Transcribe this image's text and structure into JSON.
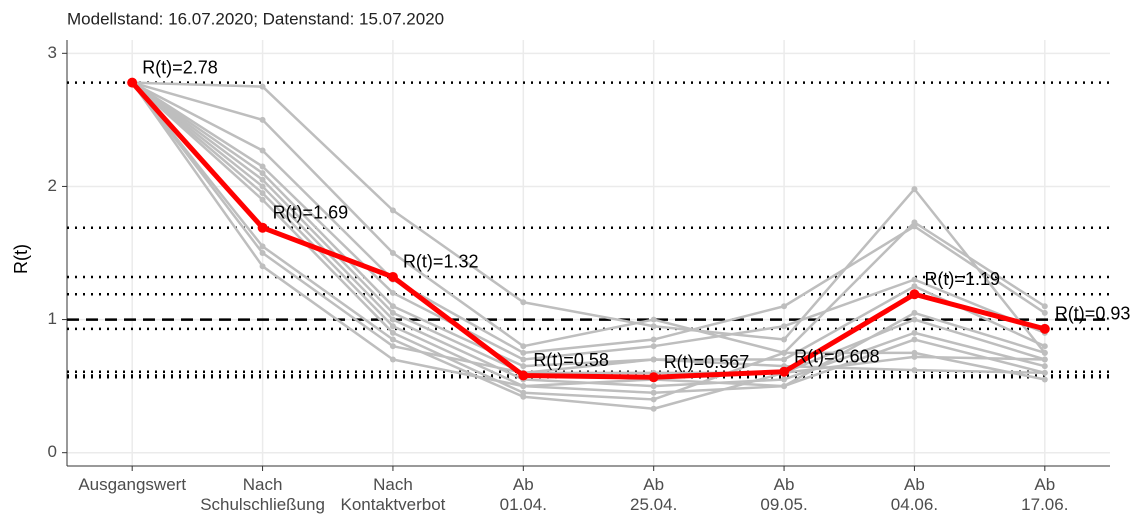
{
  "chart_data": {
    "type": "line",
    "title": "Modellstand: 16.07.2020; Datenstand: 15.07.2020",
    "y_label": "R(t)",
    "categories": [
      "Ausgangswert",
      "Nach Schulschließung",
      "Nach Kontaktverbot",
      "Ab 01.04.",
      "Ab 25.04.",
      "Ab 09.05.",
      "Ab 04.06.",
      "Ab 17.06."
    ],
    "ylim": [
      -0.1,
      3.1
    ],
    "yticks": [
      0,
      1,
      2,
      3
    ],
    "grid": true,
    "reference_line": 1,
    "series": [
      {
        "color": "#bebebe",
        "values": [
          2.78,
          2.75,
          1.82,
          1.13,
          0.95,
          0.85,
          1.98,
          0.75
        ]
      },
      {
        "color": "#bebebe",
        "values": [
          2.78,
          2.5,
          1.5,
          0.8,
          1.0,
          0.75,
          1.73,
          1.1
        ]
      },
      {
        "color": "#bebebe",
        "values": [
          2.78,
          2.27,
          1.3,
          0.75,
          0.85,
          1.1,
          1.7,
          1.05
        ]
      },
      {
        "color": "#bebebe",
        "values": [
          2.78,
          2.15,
          1.2,
          0.7,
          0.8,
          0.95,
          1.3,
          0.9
        ]
      },
      {
        "color": "#bebebe",
        "values": [
          2.78,
          2.1,
          1.1,
          0.65,
          0.7,
          0.7,
          1.25,
          0.8
        ]
      },
      {
        "color": "#bebebe",
        "values": [
          2.78,
          2.05,
          1.05,
          0.6,
          0.6,
          0.6,
          1.0,
          0.7
        ]
      },
      {
        "color": "#bebebe",
        "values": [
          2.78,
          2.0,
          1.0,
          0.55,
          0.5,
          0.55,
          0.9,
          0.65
        ]
      },
      {
        "color": "#bebebe",
        "values": [
          2.78,
          1.95,
          0.95,
          0.5,
          0.45,
          0.5,
          0.85,
          0.6
        ]
      },
      {
        "color": "#bebebe",
        "values": [
          2.78,
          1.9,
          0.9,
          0.45,
          0.4,
          0.75,
          0.75,
          0.55
        ]
      },
      {
        "color": "#bebebe",
        "values": [
          2.78,
          1.55,
          0.85,
          0.42,
          0.33,
          0.6,
          0.72,
          0.7
        ]
      },
      {
        "color": "#bebebe",
        "values": [
          2.78,
          1.5,
          0.8,
          0.6,
          0.7,
          0.65,
          0.62,
          0.6
        ]
      },
      {
        "color": "#bebebe",
        "values": [
          2.78,
          1.4,
          0.7,
          0.5,
          0.55,
          0.5,
          1.05,
          0.75
        ]
      },
      {
        "color": "#ff0000",
        "values": [
          2.78,
          1.69,
          1.32,
          0.58,
          0.567,
          0.608,
          1.19,
          0.93
        ],
        "value_labels": [
          "R(t)=2.78",
          "R(t)=1.69",
          "R(t)=1.32",
          "R(t)=0.58",
          "R(t)=0.567",
          "R(t)=0.608",
          "R(t)=1.19",
          "R(t)=0.93"
        ]
      }
    ]
  }
}
